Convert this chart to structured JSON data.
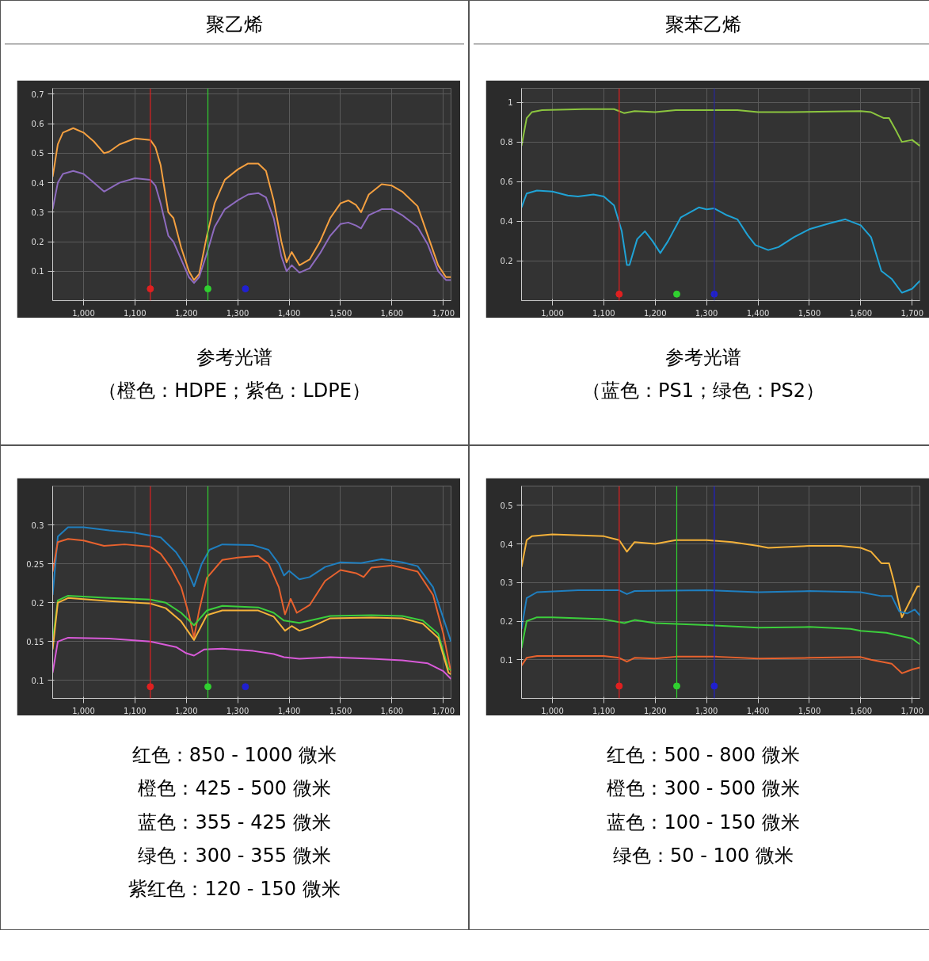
{
  "chart_data": [
    {
      "type": "line",
      "title": "聚乙烯",
      "annotations": [
        "参考光谱",
        "（橙色：HDPE；紫色：LDPE）"
      ],
      "xlim": [
        940,
        1715
      ],
      "ylim": [
        0,
        0.72
      ],
      "xticks": [
        {
          "value": 1000,
          "label": "1,000"
        },
        {
          "value": 1100,
          "label": "1,100"
        },
        {
          "value": 1200,
          "label": "1,200"
        },
        {
          "value": 1300,
          "label": "1,300"
        },
        {
          "value": 1400,
          "label": "1,400"
        },
        {
          "value": 1500,
          "label": "1,500"
        },
        {
          "value": 1600,
          "label": "1,600"
        },
        {
          "value": 1700,
          "label": "1,700"
        }
      ],
      "yticks": [
        0.1,
        0.2,
        0.3,
        0.4,
        0.5,
        0.6,
        0.7
      ],
      "grid": true,
      "ref_lines": [
        {
          "axis": "x",
          "value": 1130,
          "color": "#e02020"
        },
        {
          "axis": "x",
          "value": 1242,
          "color": "#30d030"
        }
      ],
      "series": [
        {
          "color": "#f5a040",
          "x": [
            940,
            950,
            960,
            980,
            1000,
            1020,
            1040,
            1050,
            1070,
            1100,
            1130,
            1140,
            1150,
            1165,
            1175,
            1190,
            1205,
            1215,
            1225,
            1240,
            1255,
            1275,
            1300,
            1320,
            1340,
            1355,
            1370,
            1385,
            1395,
            1405,
            1420,
            1440,
            1460,
            1480,
            1500,
            1515,
            1530,
            1540,
            1555,
            1580,
            1600,
            1620,
            1650,
            1670,
            1690,
            1705,
            1715
          ],
          "values": [
            0.42,
            0.53,
            0.57,
            0.585,
            0.57,
            0.54,
            0.5,
            0.505,
            0.53,
            0.55,
            0.545,
            0.52,
            0.46,
            0.3,
            0.28,
            0.18,
            0.1,
            0.07,
            0.09,
            0.22,
            0.33,
            0.41,
            0.445,
            0.465,
            0.465,
            0.44,
            0.34,
            0.2,
            0.13,
            0.165,
            0.12,
            0.14,
            0.2,
            0.28,
            0.33,
            0.34,
            0.325,
            0.3,
            0.36,
            0.395,
            0.39,
            0.37,
            0.32,
            0.22,
            0.12,
            0.08,
            0.08
          ]
        },
        {
          "color": "#8e6bbf",
          "x": [
            940,
            950,
            960,
            980,
            1000,
            1020,
            1040,
            1050,
            1070,
            1100,
            1130,
            1140,
            1150,
            1165,
            1175,
            1190,
            1205,
            1215,
            1225,
            1240,
            1255,
            1275,
            1300,
            1320,
            1340,
            1355,
            1370,
            1385,
            1395,
            1405,
            1420,
            1440,
            1460,
            1480,
            1500,
            1515,
            1530,
            1540,
            1555,
            1580,
            1600,
            1620,
            1650,
            1670,
            1690,
            1705,
            1715
          ],
          "values": [
            0.31,
            0.4,
            0.43,
            0.44,
            0.43,
            0.4,
            0.37,
            0.38,
            0.4,
            0.415,
            0.41,
            0.39,
            0.33,
            0.22,
            0.2,
            0.14,
            0.08,
            0.06,
            0.08,
            0.16,
            0.25,
            0.31,
            0.34,
            0.36,
            0.365,
            0.35,
            0.28,
            0.15,
            0.1,
            0.12,
            0.095,
            0.11,
            0.16,
            0.22,
            0.26,
            0.265,
            0.255,
            0.245,
            0.29,
            0.31,
            0.31,
            0.29,
            0.25,
            0.19,
            0.1,
            0.07,
            0.07
          ]
        },
        {
          "type": "scatter",
          "marker": "circle",
          "x": [
            1130,
            1242,
            1315
          ],
          "values": [
            0.04,
            0.04,
            0.04
          ],
          "colors": [
            "#e02020",
            "#30d030",
            "#2020d0"
          ]
        }
      ]
    },
    {
      "type": "line",
      "title": "聚苯乙烯",
      "annotations": [
        "参考光谱",
        "（蓝色：PS1；绿色：PS2）"
      ],
      "xlim": [
        940,
        1715
      ],
      "ylim": [
        0,
        1.07
      ],
      "xticks": [
        {
          "value": 1000,
          "label": "1,000"
        },
        {
          "value": 1100,
          "label": "1,100"
        },
        {
          "value": 1200,
          "label": "1,200"
        },
        {
          "value": 1300,
          "label": "1,300"
        },
        {
          "value": 1400,
          "label": "1,400"
        },
        {
          "value": 1500,
          "label": "1,500"
        },
        {
          "value": 1600,
          "label": "1,600"
        },
        {
          "value": 1700,
          "label": "1,700"
        }
      ],
      "yticks": [
        0.2,
        0.4,
        0.6,
        0.8,
        1
      ],
      "grid": true,
      "ref_lines": [
        {
          "axis": "x",
          "value": 1130,
          "color": "#e02020"
        },
        {
          "axis": "x",
          "value": 1315,
          "color": "#2828a0"
        }
      ],
      "series": [
        {
          "color": "#8cc63f",
          "x": [
            940,
            950,
            960,
            980,
            1060,
            1120,
            1140,
            1160,
            1200,
            1240,
            1300,
            1360,
            1400,
            1460,
            1600,
            1620,
            1645,
            1655,
            1670,
            1680,
            1700,
            1715
          ],
          "values": [
            0.78,
            0.92,
            0.95,
            0.96,
            0.965,
            0.965,
            0.945,
            0.955,
            0.95,
            0.96,
            0.96,
            0.96,
            0.95,
            0.95,
            0.955,
            0.95,
            0.92,
            0.92,
            0.85,
            0.8,
            0.81,
            0.78
          ]
        },
        {
          "color": "#1fa3d6",
          "x": [
            940,
            950,
            970,
            1000,
            1030,
            1050,
            1080,
            1100,
            1120,
            1135,
            1145,
            1150,
            1165,
            1180,
            1195,
            1210,
            1225,
            1250,
            1285,
            1300,
            1315,
            1340,
            1360,
            1380,
            1395,
            1420,
            1440,
            1470,
            1500,
            1540,
            1570,
            1600,
            1620,
            1640,
            1660,
            1680,
            1700,
            1715
          ],
          "values": [
            0.47,
            0.54,
            0.555,
            0.55,
            0.53,
            0.525,
            0.535,
            0.525,
            0.48,
            0.35,
            0.18,
            0.18,
            0.31,
            0.35,
            0.3,
            0.24,
            0.3,
            0.42,
            0.47,
            0.46,
            0.465,
            0.43,
            0.41,
            0.33,
            0.28,
            0.255,
            0.27,
            0.32,
            0.36,
            0.39,
            0.41,
            0.38,
            0.32,
            0.15,
            0.11,
            0.04,
            0.06,
            0.1
          ]
        },
        {
          "type": "scatter",
          "marker": "circle",
          "x": [
            1130,
            1242,
            1315
          ],
          "values": [
            0.033,
            0.033,
            0.033
          ],
          "colors": [
            "#e02020",
            "#30d030",
            "#2020d0"
          ]
        }
      ]
    },
    {
      "type": "line",
      "annotations": [
        "红色：850 - 1000 微米",
        "橙色：425 - 500 微米",
        "蓝色：355 - 425 微米",
        "绿色：300 - 355 微米",
        "紫红色：120 - 150 微米"
      ],
      "xlim": [
        940,
        1715
      ],
      "ylim": [
        0.077,
        0.35
      ],
      "xticks": [
        {
          "value": 1000,
          "label": "1,000"
        },
        {
          "value": 1100,
          "label": "1,100"
        },
        {
          "value": 1200,
          "label": "1,200"
        },
        {
          "value": 1300,
          "label": "1,300"
        },
        {
          "value": 1400,
          "label": "1,400"
        },
        {
          "value": 1500,
          "label": "1,500"
        },
        {
          "value": 1600,
          "label": "1,600"
        },
        {
          "value": 1700,
          "label": "1,700"
        }
      ],
      "yticks": [
        0.1,
        0.15,
        0.2,
        0.25,
        0.3
      ],
      "grid": true,
      "ref_lines": [
        {
          "axis": "x",
          "value": 1130,
          "color": "#e02020"
        },
        {
          "axis": "x",
          "value": 1242,
          "color": "#30d030"
        }
      ],
      "series": [
        {
          "color": "#1f7fc0",
          "x": [
            940,
            950,
            970,
            1000,
            1050,
            1100,
            1150,
            1180,
            1200,
            1215,
            1230,
            1245,
            1270,
            1330,
            1360,
            1380,
            1390,
            1400,
            1420,
            1440,
            1470,
            1500,
            1540,
            1580,
            1620,
            1650,
            1680,
            1700,
            1715
          ],
          "values": [
            0.21,
            0.285,
            0.297,
            0.297,
            0.293,
            0.29,
            0.284,
            0.265,
            0.245,
            0.221,
            0.25,
            0.268,
            0.275,
            0.274,
            0.268,
            0.25,
            0.235,
            0.241,
            0.23,
            0.233,
            0.246,
            0.252,
            0.251,
            0.256,
            0.252,
            0.247,
            0.22,
            0.18,
            0.15
          ]
        },
        {
          "color": "#e8622e",
          "x": [
            940,
            950,
            970,
            1000,
            1040,
            1080,
            1130,
            1150,
            1170,
            1190,
            1205,
            1215,
            1225,
            1240,
            1270,
            1300,
            1340,
            1360,
            1380,
            1392,
            1403,
            1415,
            1440,
            1470,
            1500,
            1530,
            1545,
            1560,
            1600,
            1650,
            1680,
            1700,
            1715
          ],
          "values": [
            0.24,
            0.278,
            0.282,
            0.28,
            0.273,
            0.275,
            0.272,
            0.263,
            0.245,
            0.22,
            0.185,
            0.155,
            0.19,
            0.232,
            0.255,
            0.258,
            0.26,
            0.25,
            0.22,
            0.185,
            0.205,
            0.187,
            0.197,
            0.228,
            0.242,
            0.238,
            0.233,
            0.245,
            0.248,
            0.24,
            0.21,
            0.16,
            0.11
          ]
        },
        {
          "color": "#3ccf3c",
          "x": [
            940,
            950,
            970,
            1050,
            1130,
            1160,
            1190,
            1215,
            1240,
            1270,
            1340,
            1370,
            1390,
            1420,
            1480,
            1560,
            1620,
            1660,
            1690,
            1710,
            1715
          ],
          "values": [
            0.15,
            0.203,
            0.209,
            0.206,
            0.204,
            0.2,
            0.187,
            0.171,
            0.19,
            0.196,
            0.194,
            0.187,
            0.177,
            0.174,
            0.183,
            0.184,
            0.183,
            0.177,
            0.16,
            0.115,
            0.113
          ]
        },
        {
          "color": "#f5b23a",
          "x": [
            940,
            950,
            970,
            1050,
            1130,
            1160,
            1190,
            1215,
            1240,
            1270,
            1340,
            1370,
            1392,
            1405,
            1420,
            1440,
            1480,
            1560,
            1620,
            1660,
            1690,
            1710,
            1715
          ],
          "values": [
            0.14,
            0.2,
            0.206,
            0.202,
            0.199,
            0.193,
            0.176,
            0.152,
            0.184,
            0.19,
            0.19,
            0.182,
            0.164,
            0.17,
            0.164,
            0.168,
            0.18,
            0.181,
            0.18,
            0.173,
            0.155,
            0.11,
            0.108
          ]
        },
        {
          "color": "#d85ad8",
          "x": [
            940,
            950,
            970,
            1050,
            1130,
            1180,
            1200,
            1215,
            1235,
            1270,
            1330,
            1370,
            1390,
            1420,
            1480,
            1560,
            1620,
            1670,
            1700,
            1715
          ],
          "values": [
            0.11,
            0.15,
            0.155,
            0.154,
            0.15,
            0.143,
            0.135,
            0.132,
            0.14,
            0.141,
            0.138,
            0.134,
            0.13,
            0.128,
            0.13,
            0.128,
            0.126,
            0.122,
            0.112,
            0.102
          ]
        },
        {
          "type": "scatter",
          "marker": "circle",
          "x": [
            1130,
            1242,
            1315
          ],
          "values": [
            0.092,
            0.092,
            0.092
          ],
          "colors": [
            "#e02020",
            "#30d030",
            "#2020d0"
          ]
        }
      ]
    },
    {
      "type": "line",
      "annotations": [
        "红色：500 - 800 微米",
        "橙色：300 - 500 微米",
        "蓝色：100 - 150 微米",
        "绿色：50 - 100 微米"
      ],
      "xlim": [
        940,
        1715
      ],
      "ylim": [
        0,
        0.55
      ],
      "xticks": [
        {
          "value": 1000,
          "label": "1,000"
        },
        {
          "value": 1100,
          "label": "1,100"
        },
        {
          "value": 1200,
          "label": "1,200"
        },
        {
          "value": 1300,
          "label": "1,300"
        },
        {
          "value": 1400,
          "label": "1,400"
        },
        {
          "value": 1500,
          "label": "1,500"
        },
        {
          "value": 1600,
          "label": "1,600"
        },
        {
          "value": 1700,
          "label": "1,700"
        }
      ],
      "yticks": [
        0.1,
        0.2,
        0.3,
        0.4,
        0.5
      ],
      "grid": true,
      "ref_lines": [
        {
          "axis": "x",
          "value": 1130,
          "color": "#e02020"
        },
        {
          "axis": "x",
          "value": 1242,
          "color": "#30d030"
        },
        {
          "axis": "x",
          "value": 1315,
          "color": "#2020d0"
        }
      ],
      "series": [
        {
          "color": "#f5b23a",
          "x": [
            940,
            950,
            960,
            1000,
            1100,
            1130,
            1145,
            1160,
            1200,
            1240,
            1300,
            1350,
            1400,
            1420,
            1500,
            1560,
            1600,
            1620,
            1640,
            1655,
            1665,
            1680,
            1695,
            1710,
            1715
          ],
          "values": [
            0.34,
            0.41,
            0.42,
            0.425,
            0.42,
            0.41,
            0.38,
            0.405,
            0.4,
            0.41,
            0.41,
            0.405,
            0.395,
            0.39,
            0.395,
            0.395,
            0.39,
            0.38,
            0.35,
            0.35,
            0.3,
            0.21,
            0.25,
            0.29,
            0.29
          ]
        },
        {
          "color": "#1f7fc0",
          "x": [
            940,
            950,
            970,
            1050,
            1130,
            1145,
            1160,
            1300,
            1400,
            1500,
            1600,
            1640,
            1660,
            1675,
            1690,
            1705,
            1715
          ],
          "values": [
            0.18,
            0.26,
            0.275,
            0.28,
            0.28,
            0.27,
            0.278,
            0.28,
            0.275,
            0.278,
            0.275,
            0.265,
            0.265,
            0.225,
            0.22,
            0.23,
            0.215
          ]
        },
        {
          "color": "#3ccf3c",
          "x": [
            940,
            950,
            970,
            1000,
            1100,
            1140,
            1160,
            1200,
            1300,
            1400,
            1500,
            1580,
            1600,
            1650,
            1700,
            1715
          ],
          "values": [
            0.13,
            0.2,
            0.21,
            0.21,
            0.205,
            0.195,
            0.203,
            0.195,
            0.19,
            0.183,
            0.185,
            0.18,
            0.175,
            0.17,
            0.155,
            0.14
          ]
        },
        {
          "color": "#e8622e",
          "x": [
            940,
            950,
            970,
            1100,
            1130,
            1145,
            1160,
            1200,
            1240,
            1320,
            1400,
            1500,
            1600,
            1620,
            1660,
            1680,
            1700,
            1715
          ],
          "values": [
            0.085,
            0.105,
            0.11,
            0.11,
            0.105,
            0.095,
            0.105,
            0.103,
            0.108,
            0.108,
            0.103,
            0.105,
            0.107,
            0.1,
            0.09,
            0.065,
            0.075,
            0.08
          ]
        },
        {
          "type": "scatter",
          "marker": "circle",
          "x": [
            1130,
            1242,
            1315
          ],
          "values": [
            0.032,
            0.032,
            0.032
          ],
          "colors": [
            "#e02020",
            "#30d030",
            "#2020d0"
          ]
        }
      ]
    }
  ]
}
